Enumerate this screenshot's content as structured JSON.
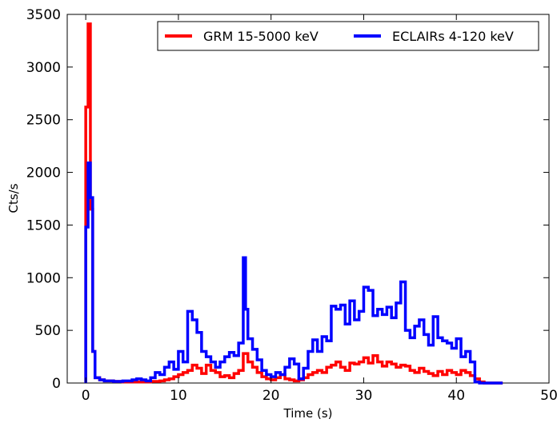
{
  "chart_data": {
    "type": "line",
    "step": true,
    "xlabel": "Time (s)",
    "ylabel": "Cts/s",
    "xlim": [
      -2,
      50
    ],
    "ylim": [
      0,
      3500
    ],
    "xticks": [
      0,
      10,
      20,
      30,
      40,
      50
    ],
    "yticks": [
      0,
      500,
      1000,
      1500,
      2000,
      2500,
      3000,
      3500
    ],
    "grid": false,
    "legend_position": "top-right",
    "series": [
      {
        "name": "GRM 15-5000 keV",
        "color": "#ff0000",
        "x": [
          0.0,
          0.25,
          0.5,
          0.75,
          1.0,
          1.5,
          2.0,
          3.0,
          4.0,
          5.0,
          6.0,
          7.0,
          8.0,
          8.5,
          9.0,
          9.5,
          10.0,
          10.5,
          11.0,
          11.5,
          12.0,
          12.5,
          13.0,
          13.5,
          14.0,
          14.5,
          15.0,
          15.5,
          16.0,
          16.5,
          17.0,
          17.5,
          18.0,
          18.5,
          19.0,
          19.5,
          20.0,
          20.5,
          21.0,
          21.5,
          22.0,
          22.5,
          23.0,
          23.5,
          24.0,
          24.5,
          25.0,
          25.5,
          26.0,
          26.5,
          27.0,
          27.5,
          28.0,
          28.5,
          29.0,
          29.5,
          30.0,
          30.5,
          31.0,
          31.5,
          32.0,
          32.5,
          33.0,
          33.5,
          34.0,
          34.5,
          35.0,
          35.5,
          36.0,
          36.5,
          37.0,
          37.5,
          38.0,
          38.5,
          39.0,
          39.5,
          40.0,
          40.5,
          41.0,
          41.5,
          42.0,
          42.5,
          43.0,
          44.0,
          45.0
        ],
        "y": [
          2620,
          3410,
          1650,
          300,
          50,
          30,
          20,
          15,
          10,
          10,
          10,
          15,
          20,
          30,
          40,
          60,
          80,
          100,
          120,
          170,
          140,
          90,
          170,
          120,
          100,
          60,
          70,
          50,
          90,
          120,
          280,
          200,
          150,
          100,
          60,
          40,
          30,
          50,
          80,
          40,
          30,
          20,
          30,
          50,
          80,
          100,
          120,
          100,
          150,
          170,
          200,
          150,
          120,
          190,
          180,
          200,
          240,
          190,
          260,
          200,
          160,
          200,
          180,
          150,
          170,
          160,
          120,
          100,
          140,
          110,
          90,
          70,
          110,
          80,
          120,
          100,
          80,
          120,
          100,
          70,
          40,
          10,
          0,
          0,
          0
        ]
      },
      {
        "name": "ECLAIRs 4-120 keV",
        "color": "#0000ff",
        "x": [
          0.0,
          0.25,
          0.5,
          0.75,
          1.0,
          1.5,
          2.0,
          3.0,
          4.0,
          5.0,
          5.5,
          6.0,
          6.5,
          7.0,
          7.5,
          8.0,
          8.5,
          9.0,
          9.5,
          10.0,
          10.5,
          11.0,
          11.5,
          12.0,
          12.5,
          13.0,
          13.5,
          14.0,
          14.5,
          15.0,
          15.5,
          16.0,
          16.5,
          17.0,
          17.25,
          17.5,
          18.0,
          18.5,
          19.0,
          19.5,
          20.0,
          20.5,
          21.0,
          21.5,
          22.0,
          22.5,
          23.0,
          23.5,
          24.0,
          24.5,
          25.0,
          25.5,
          26.0,
          26.5,
          27.0,
          27.5,
          28.0,
          28.5,
          29.0,
          29.5,
          30.0,
          30.5,
          31.0,
          31.5,
          32.0,
          32.5,
          33.0,
          33.5,
          34.0,
          34.5,
          35.0,
          35.5,
          36.0,
          36.5,
          37.0,
          37.5,
          38.0,
          38.5,
          39.0,
          39.5,
          40.0,
          40.5,
          41.0,
          41.5,
          42.0,
          42.5,
          43.0,
          44.0,
          45.0
        ],
        "y": [
          1480,
          2090,
          1760,
          300,
          50,
          30,
          20,
          15,
          20,
          30,
          40,
          30,
          20,
          50,
          100,
          80,
          150,
          200,
          130,
          300,
          200,
          680,
          600,
          480,
          300,
          250,
          200,
          150,
          200,
          250,
          290,
          260,
          380,
          1190,
          700,
          420,
          320,
          220,
          120,
          80,
          60,
          100,
          80,
          150,
          230,
          180,
          40,
          140,
          300,
          410,
          300,
          440,
          400,
          730,
          700,
          740,
          560,
          780,
          600,
          680,
          910,
          880,
          640,
          700,
          650,
          720,
          620,
          760,
          960,
          500,
          430,
          540,
          600,
          460,
          360,
          630,
          430,
          400,
          380,
          330,
          420,
          250,
          300,
          200,
          10,
          0,
          0,
          0,
          0
        ]
      }
    ]
  }
}
